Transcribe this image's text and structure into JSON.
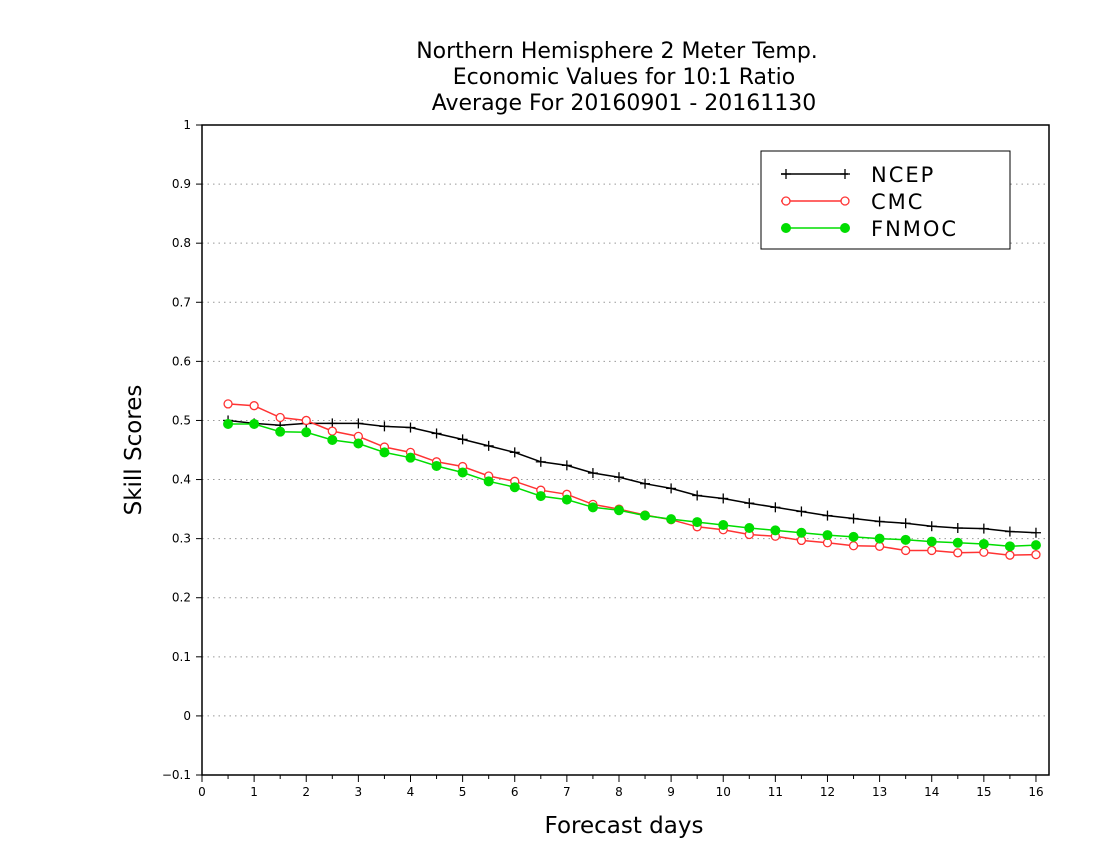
{
  "chart_data": {
    "type": "line",
    "title": [
      "Northern Hemisphere 2 Meter Temp.",
      "Economic Values for 10:1 Ratio",
      "Average For 20160901 - 20161130"
    ],
    "xlabel": "Forecast days",
    "ylabel": "Skill Scores",
    "xlim": [
      0,
      16.25
    ],
    "ylim": [
      -0.1,
      1
    ],
    "x_ticks": [
      0,
      1,
      2,
      3,
      4,
      5,
      6,
      7,
      8,
      9,
      10,
      11,
      12,
      13,
      14,
      15,
      16
    ],
    "y_ticks": [
      -0.1,
      0,
      0.1,
      0.2,
      0.3,
      0.4,
      0.5,
      0.6,
      0.7,
      0.8,
      0.9,
      1
    ],
    "grid": "horizontal dotted",
    "legend_position": "top-right",
    "x": [
      0.5,
      1,
      1.5,
      2,
      2.5,
      3,
      3.5,
      4,
      4.5,
      5,
      5.5,
      6,
      6.5,
      7,
      7.5,
      8,
      8.5,
      9,
      9.5,
      10,
      10.5,
      11,
      11.5,
      12,
      12.5,
      13,
      13.5,
      14,
      14.5,
      15,
      15.5,
      16
    ],
    "series": [
      {
        "name": "NCEP",
        "color": "#000000",
        "marker": "plus",
        "values": [
          0.5,
          0.495,
          0.492,
          0.495,
          0.495,
          0.495,
          0.49,
          0.488,
          0.478,
          0.468,
          0.457,
          0.446,
          0.43,
          0.424,
          0.411,
          0.404,
          0.393,
          0.385,
          0.373,
          0.368,
          0.36,
          0.353,
          0.346,
          0.339,
          0.334,
          0.329,
          0.326,
          0.321,
          0.318,
          0.317,
          0.312,
          0.31
        ]
      },
      {
        "name": "CMC",
        "color": "#ff3333",
        "marker": "open-circle",
        "values": [
          0.528,
          0.525,
          0.505,
          0.5,
          0.482,
          0.473,
          0.455,
          0.446,
          0.43,
          0.422,
          0.406,
          0.397,
          0.382,
          0.375,
          0.358,
          0.35,
          0.34,
          0.332,
          0.32,
          0.315,
          0.307,
          0.304,
          0.297,
          0.293,
          0.288,
          0.287,
          0.28,
          0.28,
          0.276,
          0.277,
          0.272,
          0.273
        ]
      },
      {
        "name": "FNMOC",
        "color": "#00dd00",
        "marker": "filled-circle",
        "values": [
          0.494,
          0.494,
          0.481,
          0.48,
          0.467,
          0.461,
          0.446,
          0.437,
          0.423,
          0.412,
          0.397,
          0.387,
          0.372,
          0.366,
          0.353,
          0.348,
          0.339,
          0.333,
          0.328,
          0.323,
          0.318,
          0.314,
          0.31,
          0.306,
          0.303,
          0.3,
          0.298,
          0.295,
          0.293,
          0.291,
          0.287,
          0.289
        ]
      }
    ]
  }
}
